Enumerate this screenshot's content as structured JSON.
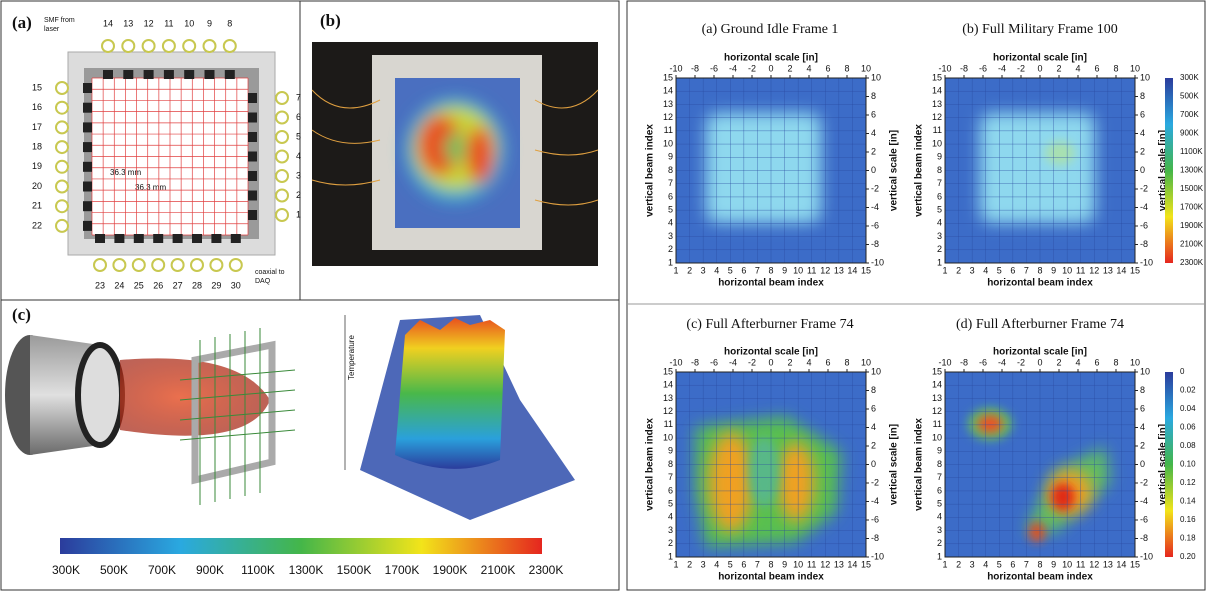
{
  "left": {
    "a": {
      "label": "(a)",
      "smf": "SMF from",
      "smf2": "laser",
      "dim_h": "36.3 mm",
      "dim_v": "36.3 mm",
      "coax": "coaxial to",
      "coax2": "DAQ",
      "top_ports": [
        "14",
        "13",
        "12",
        "11",
        "10",
        "9",
        "8"
      ],
      "right_ports": [
        "7",
        "6",
        "5",
        "4",
        "3",
        "2",
        "1"
      ],
      "left_ports": [
        "15",
        "16",
        "17",
        "18",
        "19",
        "20",
        "21",
        "22"
      ],
      "bottom_ports": [
        "23",
        "24",
        "25",
        "26",
        "27",
        "28",
        "29",
        "30"
      ]
    },
    "b": {
      "label": "(b)"
    },
    "c": {
      "label": "(c)",
      "z_label": "Temperature"
    }
  },
  "temperature_labels": [
    "300K",
    "500K",
    "700K",
    "900K",
    "1100K",
    "1300K",
    "1500K",
    "1700K",
    "1900K",
    "2100K",
    "2300K"
  ],
  "fraction_labels": [
    "0",
    "0.02",
    "0.04",
    "0.06",
    "0.08",
    "0.10",
    "0.12",
    "0.14",
    "0.16",
    "0.18",
    "0.20"
  ],
  "axes": {
    "x_top_label": "horizontal scale [in]",
    "x_label": "horizontal beam index",
    "y_label": "vertical beam index",
    "y2_label": "vertical scale [in]",
    "beam_ticks": [
      1,
      2,
      3,
      4,
      5,
      6,
      7,
      8,
      9,
      10,
      11,
      12,
      13,
      14,
      15
    ],
    "scale_ticks": [
      -10,
      -8,
      -6,
      -4,
      -2,
      0,
      2,
      4,
      6,
      8,
      10
    ]
  },
  "panels": [
    {
      "title": "(a) Ground Idle Frame 1"
    },
    {
      "title": "(b) Full Military Frame 100"
    },
    {
      "title": "(c) Full Afterburner Frame 74"
    },
    {
      "title": "(d) Full Afterburner Frame 74"
    }
  ]
}
